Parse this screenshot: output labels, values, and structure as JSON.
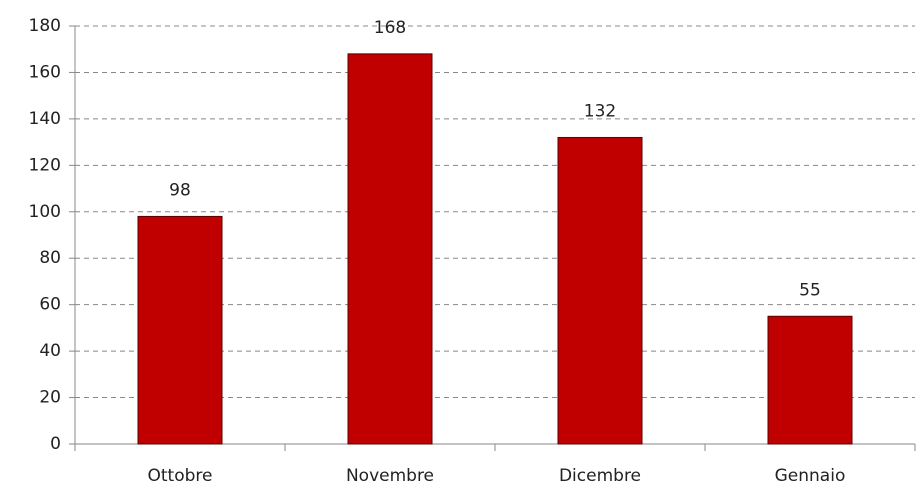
{
  "chart_data": {
    "type": "bar",
    "categories": [
      "Ottobre",
      "Novembre",
      "Dicembre",
      "Gennaio"
    ],
    "values": [
      98,
      168,
      132,
      55
    ],
    "color": "#c00000",
    "ylim": [
      0,
      180
    ],
    "yticks": [
      0,
      20,
      40,
      60,
      80,
      100,
      120,
      140,
      160,
      180
    ],
    "grid": true
  }
}
